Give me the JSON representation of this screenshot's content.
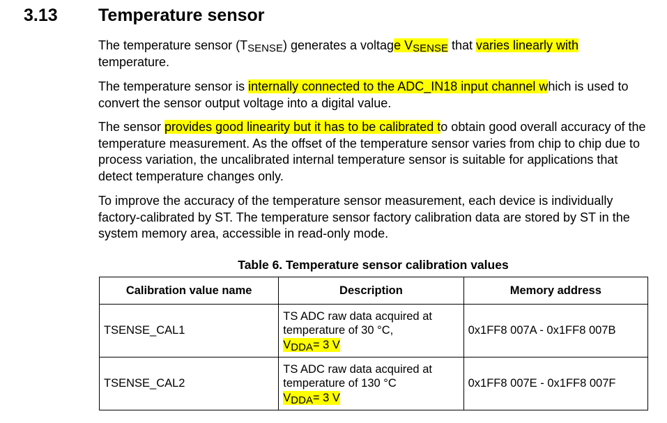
{
  "section": {
    "number": "3.13",
    "title": "Temperature sensor"
  },
  "paragraphs": {
    "p1": {
      "a": "The temperature sensor (T",
      "a_sub": "SENSE",
      "b": ") generates a voltag",
      "c_hl": "e V",
      "c_sub": "SENSE",
      "d": " that ",
      "e_hl": "varies linearly with",
      "f": " temperature."
    },
    "p2": {
      "a": "The temperature sensor is ",
      "b_hl": "internally connected to the ADC_IN18 input channel w",
      "c": "hich is used to convert the sensor output voltage into a digital value."
    },
    "p3": {
      "a": "The sensor ",
      "b_hl": "provides good linearity but it has to be calibrated t",
      "c": "o obtain good overall accuracy of the temperature measurement. As the offset of the temperature sensor varies from chip to chip due to process variation, the uncalibrated internal temperature sensor is suitable for applications that detect temperature changes only."
    },
    "p4": "To improve the accuracy of the temperature sensor measurement, each device is individually factory-calibrated by ST. The temperature sensor factory calibration data are stored by ST in the system memory area, accessible in read-only mode."
  },
  "table": {
    "caption": "Table 6. Temperature sensor calibration values",
    "headers": [
      "Calibration value name",
      "Description",
      "Memory address"
    ],
    "rows": [
      {
        "name": "TSENSE_CAL1",
        "desc_line1": "TS ADC raw data acquired at",
        "desc_line2": "temperature of 30 °C,",
        "vdda_main": "V",
        "vdda_sub": "DDA",
        "vdda_value": "= 3 V",
        "address": "0x1FF8 007A - 0x1FF8 007B"
      },
      {
        "name": "TSENSE_CAL2",
        "desc_line1": "TS ADC raw data acquired at",
        "desc_line2": "temperature of 130 °C",
        "vdda_main": "V",
        "vdda_sub": "DDA",
        "vdda_value": "= 3 V",
        "address": "0x1FF8 007E - 0x1FF8 007F"
      }
    ]
  },
  "highlight_color": "#ffff00"
}
